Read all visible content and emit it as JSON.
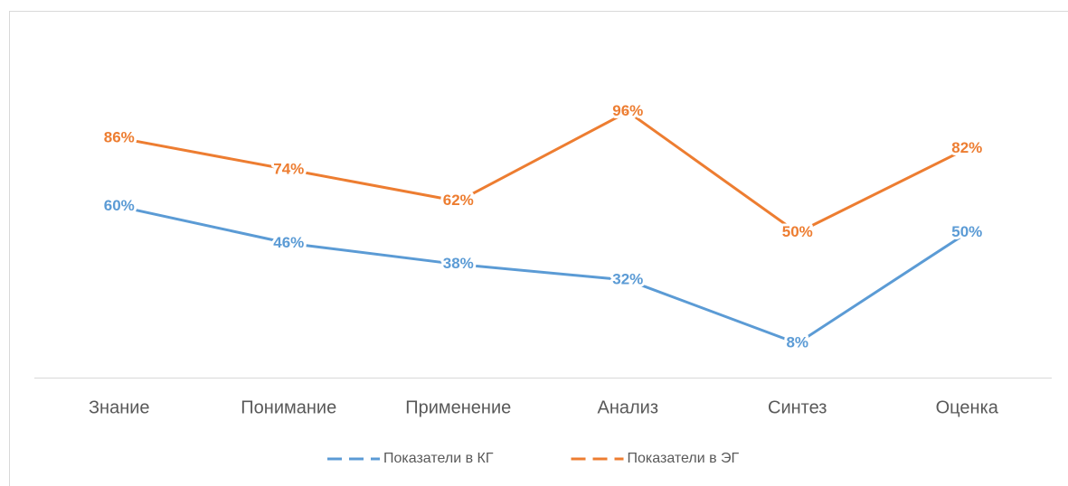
{
  "chart_data": {
    "type": "line",
    "categories": [
      "Знание",
      "Понимание",
      "Применение",
      "Анализ",
      "Синтез",
      "Оценка"
    ],
    "series": [
      {
        "name": "Показатели в КГ",
        "color": "#5b9bd5",
        "values": [
          60,
          46,
          38,
          32,
          8,
          50
        ],
        "value_labels": [
          "60%",
          "46%",
          "38%",
          "32%",
          "8%",
          "50%"
        ]
      },
      {
        "name": "Показатели в ЭГ",
        "color": "#ed7d31",
        "values": [
          86,
          74,
          62,
          96,
          50,
          82
        ],
        "value_labels": [
          "86%",
          "74%",
          "62%",
          "96%",
          "50%",
          "82%"
        ]
      }
    ],
    "ylim": [
      -5,
      100
    ],
    "legend": "bottom"
  }
}
